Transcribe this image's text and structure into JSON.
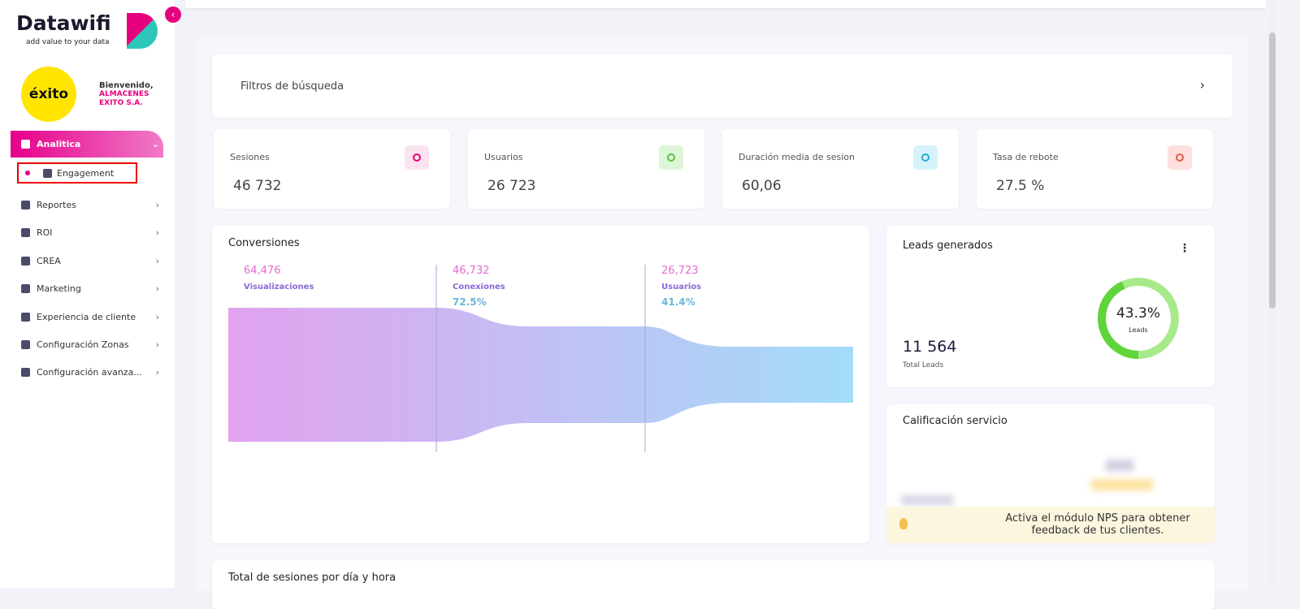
{
  "sidebar": {
    "logo": "Datawifi",
    "tagline": "add value to your data",
    "brand": "éxito",
    "welcome": "Bienvenido,",
    "company": "ALMACENES EXITO S.A.",
    "menu": [
      {
        "label": "Analitica",
        "children": [
          "Engagement"
        ]
      },
      {
        "label": "Reportes"
      },
      {
        "label": "ROI"
      },
      {
        "label": "CREA"
      },
      {
        "label": "Marketing"
      },
      {
        "label": "Experiencia de cliente"
      },
      {
        "label": "Configuración Zonas"
      },
      {
        "label": "Configuración avanza..."
      }
    ]
  },
  "filters": {
    "title": "Filtros de búsqueda"
  },
  "stats": [
    {
      "label": "Sesiones",
      "value": "46 732"
    },
    {
      "label": "Usuarios",
      "value": "26 723"
    },
    {
      "label": "Duración media de sesion",
      "value": "60,06"
    },
    {
      "label": "Tasa de rebote",
      "value": "27.5 %"
    }
  ],
  "conversions": {
    "title": "Conversiones",
    "stages": [
      {
        "value": "64,476",
        "name": "Visualizaciones"
      },
      {
        "value": "46,732",
        "name": "Conexiones",
        "percent": "72.5%"
      },
      {
        "value": "26,723",
        "name": "Usuarios",
        "percent": "41.4%"
      }
    ]
  },
  "leads": {
    "title": "Leads generados",
    "total": "11 564",
    "total_label": "Total Leads",
    "donut_value": "43.3%",
    "donut_label": "Leads"
  },
  "rating": {
    "title": "Calificación servicio",
    "notice": "Activa el módulo NPS para obtener feedback de tus clientes."
  },
  "sessions": {
    "title": "Total de sesiones por día y hora"
  }
}
